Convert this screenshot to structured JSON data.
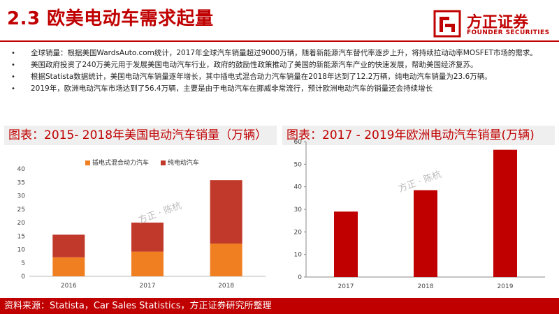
{
  "header": {
    "title": "2.3 欧美电动车需求起量",
    "logo_cn": "方正证券",
    "logo_en": "FOUNDER SECURITIES"
  },
  "bullets": [
    "全球销量：根据美国WardsAuto.com统计，2017年全球汽车销量超过9000万辆，随着新能源汽车替代率逐步上升，将持续拉动动率MOSFET市场的需求。",
    "美国政府投资了240万美元用于发展美国电动汽车行业，政府的鼓励性政策推动了美国的新能源汽车产业的快速发展，帮助美国经济复苏。",
    "根据Statista数据统计，美国电动汽车销量逐年增长，其中插电式混合动力汽车销量在2018年达到了12.2万辆，纯电动汽车销量为23.6万辆。",
    "2019年，欧洲电动汽车市场达到了56.4万辆，主要是由于电动汽车在挪威非常流行，预计欧洲电动汽车的销量还会持续增长"
  ],
  "watermark": "方正 · 陈杭",
  "footer": "资料来源：Statista，Car Sales Statistics，方正证券研究所整理",
  "colors": {
    "brand": "#c00000",
    "phev": "#f07f22",
    "bev": "#c0392b",
    "eu_bar": "#c00000"
  },
  "chart_data": [
    {
      "type": "bar",
      "stacked": true,
      "title": "图表：2015- 2018年美国电动汽车销量（万辆）",
      "categories": [
        "2016",
        "2017",
        "2018"
      ],
      "series": [
        {
          "name": "插电式混合动力汽车",
          "values": [
            7.1,
            9.2,
            12.2
          ]
        },
        {
          "name": "纯电动汽车",
          "values": [
            8.4,
            10.8,
            23.6
          ]
        }
      ],
      "ylim": [
        0,
        40
      ],
      "yticks": [
        "0",
        "5",
        "10",
        "15",
        "20",
        "25",
        "30",
        "35",
        "40"
      ],
      "legend_position": "top",
      "grid": false
    },
    {
      "type": "bar",
      "title": "图表：2017 - 2019年欧洲电动汽车销量(万辆)",
      "categories": [
        "2017",
        "2018",
        "2019"
      ],
      "values": [
        29,
        38.5,
        56.4
      ],
      "ylim": [
        0,
        60
      ],
      "yticks": [
        "0",
        "10",
        "20",
        "30",
        "40",
        "50",
        "60"
      ],
      "grid": false
    }
  ]
}
